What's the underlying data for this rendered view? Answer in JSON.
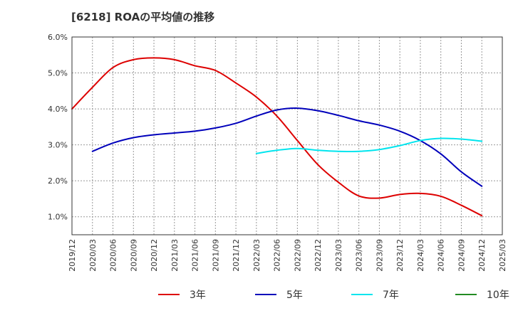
{
  "chart_data": {
    "type": "line",
    "title": "[6218]  ROAの平均値の推移",
    "xlabel": "",
    "ylabel": "",
    "y_ticks": [
      "1.0%",
      "2.0%",
      "3.0%",
      "4.0%",
      "5.0%",
      "6.0%"
    ],
    "y_tick_values": [
      1.0,
      2.0,
      3.0,
      4.0,
      5.0,
      6.0
    ],
    "ylim": [
      0.5,
      6.0
    ],
    "x_ticks": [
      "2019/12",
      "2020/03",
      "2020/06",
      "2020/09",
      "2020/12",
      "2021/03",
      "2021/06",
      "2021/09",
      "2021/12",
      "2022/03",
      "2022/06",
      "2022/09",
      "2022/12",
      "2023/03",
      "2023/06",
      "2023/09",
      "2023/12",
      "2024/03",
      "2024/06",
      "2024/09",
      "2024/12",
      "2025/03"
    ],
    "grid": true,
    "legend_position": "bottom",
    "series": [
      {
        "name": "3年",
        "color": "#dd0000",
        "x": [
          "2019/12",
          "2020/03",
          "2020/06",
          "2020/09",
          "2020/12",
          "2021/03",
          "2021/06",
          "2021/09",
          "2021/12",
          "2022/03",
          "2022/06",
          "2022/09",
          "2022/12",
          "2023/03",
          "2023/06",
          "2023/09",
          "2023/12",
          "2024/03",
          "2024/06",
          "2024/09",
          "2024/12"
        ],
        "values": [
          4.0,
          4.6,
          5.15,
          5.37,
          5.42,
          5.37,
          5.2,
          5.07,
          4.72,
          4.33,
          3.8,
          3.12,
          2.45,
          1.96,
          1.58,
          1.52,
          1.62,
          1.65,
          1.57,
          1.32,
          1.03
        ]
      },
      {
        "name": "5年",
        "color": "#0000bb",
        "x": [
          "2020/03",
          "2020/06",
          "2020/09",
          "2020/12",
          "2021/03",
          "2021/06",
          "2021/09",
          "2021/12",
          "2022/03",
          "2022/06",
          "2022/09",
          "2022/12",
          "2023/03",
          "2023/06",
          "2023/09",
          "2023/12",
          "2024/03",
          "2024/06",
          "2024/09",
          "2024/12"
        ],
        "values": [
          2.82,
          3.05,
          3.2,
          3.28,
          3.33,
          3.38,
          3.47,
          3.6,
          3.8,
          3.97,
          4.02,
          3.95,
          3.82,
          3.67,
          3.55,
          3.38,
          3.12,
          2.75,
          2.25,
          1.85
        ]
      },
      {
        "name": "7年",
        "color": "#00e5ee",
        "x": [
          "2022/03",
          "2022/06",
          "2022/09",
          "2022/12",
          "2023/03",
          "2023/06",
          "2023/09",
          "2023/12",
          "2024/03",
          "2024/06",
          "2024/09",
          "2024/12"
        ],
        "values": [
          2.76,
          2.85,
          2.9,
          2.85,
          2.82,
          2.82,
          2.87,
          2.98,
          3.12,
          3.18,
          3.16,
          3.1
        ]
      },
      {
        "name": "10年",
        "color": "#228b22",
        "x": [],
        "values": []
      }
    ]
  }
}
